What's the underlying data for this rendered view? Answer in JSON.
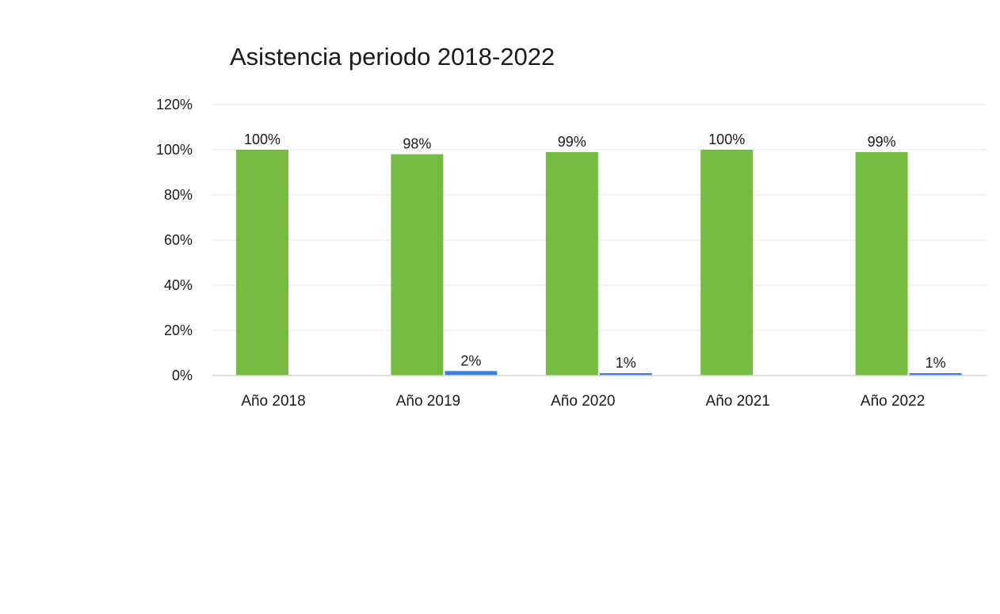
{
  "chart_data": {
    "type": "bar",
    "title": "Asistencia periodo 2018-2022",
    "categories": [
      "Año 2018",
      "Año 2019",
      "Año 2020",
      "Año 2021",
      "Año 2022"
    ],
    "series": [
      {
        "values": [
          100,
          98,
          99,
          100,
          99
        ],
        "labels": [
          "100%",
          "98%",
          "99%",
          "100%",
          "99%"
        ],
        "color": "#76bc43"
      },
      {
        "values": [
          0,
          2,
          1,
          0,
          1
        ],
        "labels": [
          "",
          "2%",
          "1%",
          "",
          "1%"
        ],
        "color": "#3b7dd8"
      }
    ],
    "y_ticks": [
      "0%",
      "20%",
      "40%",
      "60%",
      "80%",
      "100%",
      "120%"
    ],
    "ylim": [
      0,
      120
    ],
    "xlabel": "",
    "ylabel": "",
    "grid": true,
    "legend": "none"
  }
}
